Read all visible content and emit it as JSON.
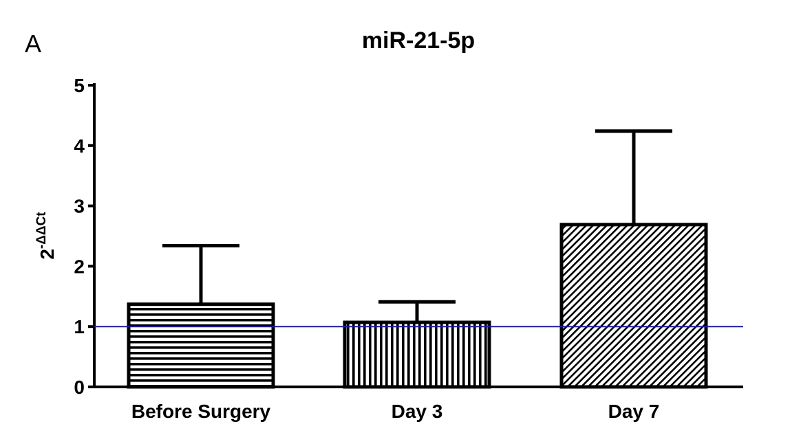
{
  "panel_letter": "A",
  "chart_data": {
    "type": "bar",
    "title": "miR-21-5p",
    "xlabel": "",
    "ylabel": {
      "base": "2",
      "superscript": "-ΔΔCt"
    },
    "categories": [
      "Before Surgery",
      "Day 3",
      "Day 7"
    ],
    "values": [
      1.37,
      1.07,
      2.69
    ],
    "error_upper": [
      2.34,
      1.41,
      4.24
    ],
    "ylim": [
      0,
      5
    ],
    "yticks": [
      0,
      1,
      2,
      3,
      4,
      5
    ],
    "reference_line": {
      "y": 1,
      "color": "#1a1aa6"
    },
    "bar_patterns": [
      "horizontal-lines",
      "vertical-lines",
      "diagonal-lines"
    ],
    "grid": false,
    "legend": "none"
  }
}
